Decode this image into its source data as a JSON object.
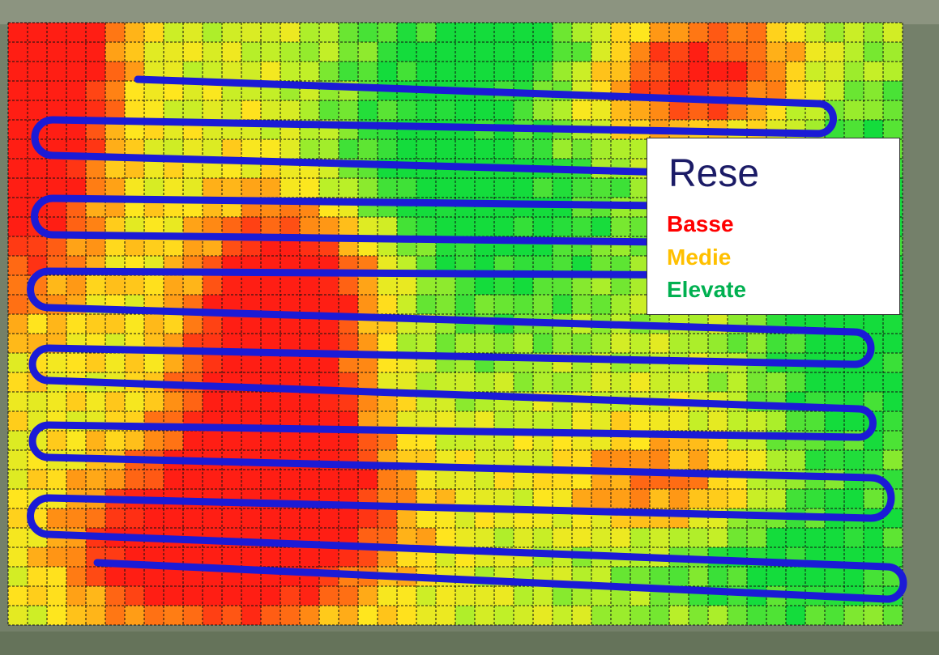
{
  "legend": {
    "title": "Rese",
    "items": [
      "Basse",
      "Medie",
      "Elevate"
    ]
  }
}
